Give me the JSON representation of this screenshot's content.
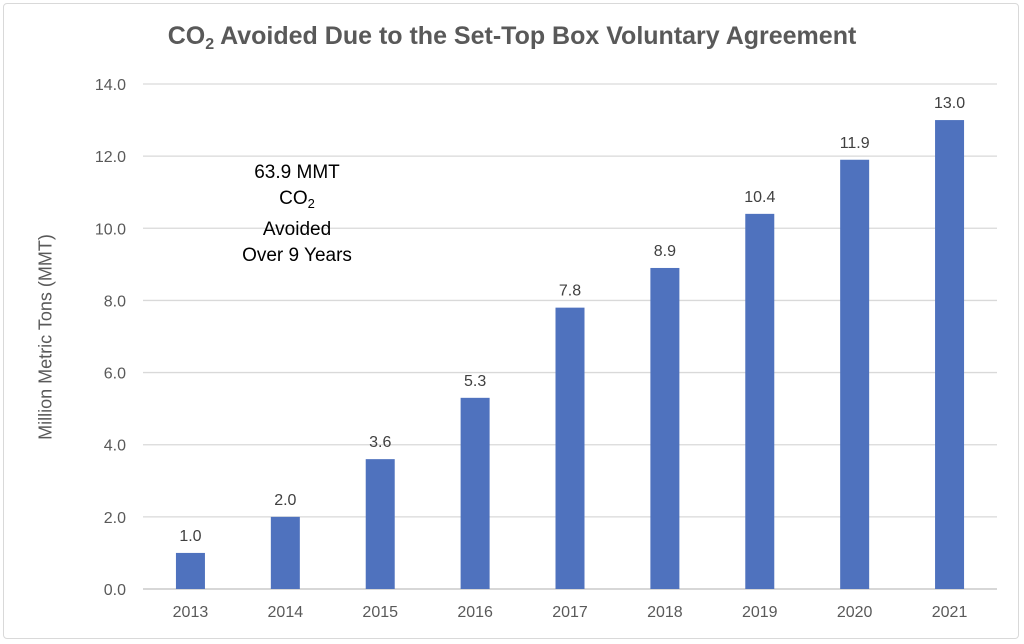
{
  "chart_data": {
    "type": "bar",
    "title_parts": [
      "CO",
      "2",
      " Avoided Due to the Set-Top Box Voluntary Agreement"
    ],
    "ylabel": "Million Metric Tons (MMT)",
    "xlabel": "",
    "categories": [
      "2013",
      "2014",
      "2015",
      "2016",
      "2017",
      "2018",
      "2019",
      "2020",
      "2021"
    ],
    "values": [
      1.0,
      2.0,
      3.6,
      5.3,
      7.8,
      8.9,
      10.4,
      11.9,
      13.0
    ],
    "data_labels": [
      "1.0",
      "2.0",
      "3.6",
      "5.3",
      "7.8",
      "8.9",
      "10.4",
      "11.9",
      "13.0"
    ],
    "ylim": [
      0,
      14
    ],
    "yticks": [
      "0.0",
      "2.0",
      "4.0",
      "6.0",
      "8.0",
      "10.0",
      "12.0",
      "14.0"
    ],
    "grid": true,
    "legend": "none",
    "bar_color": "#4f72be",
    "annotation": {
      "line1": "63.9 MMT",
      "line2_main": "CO",
      "line2_sub": "2",
      "line3": "Avoided",
      "line4": "Over 9 Years"
    }
  }
}
